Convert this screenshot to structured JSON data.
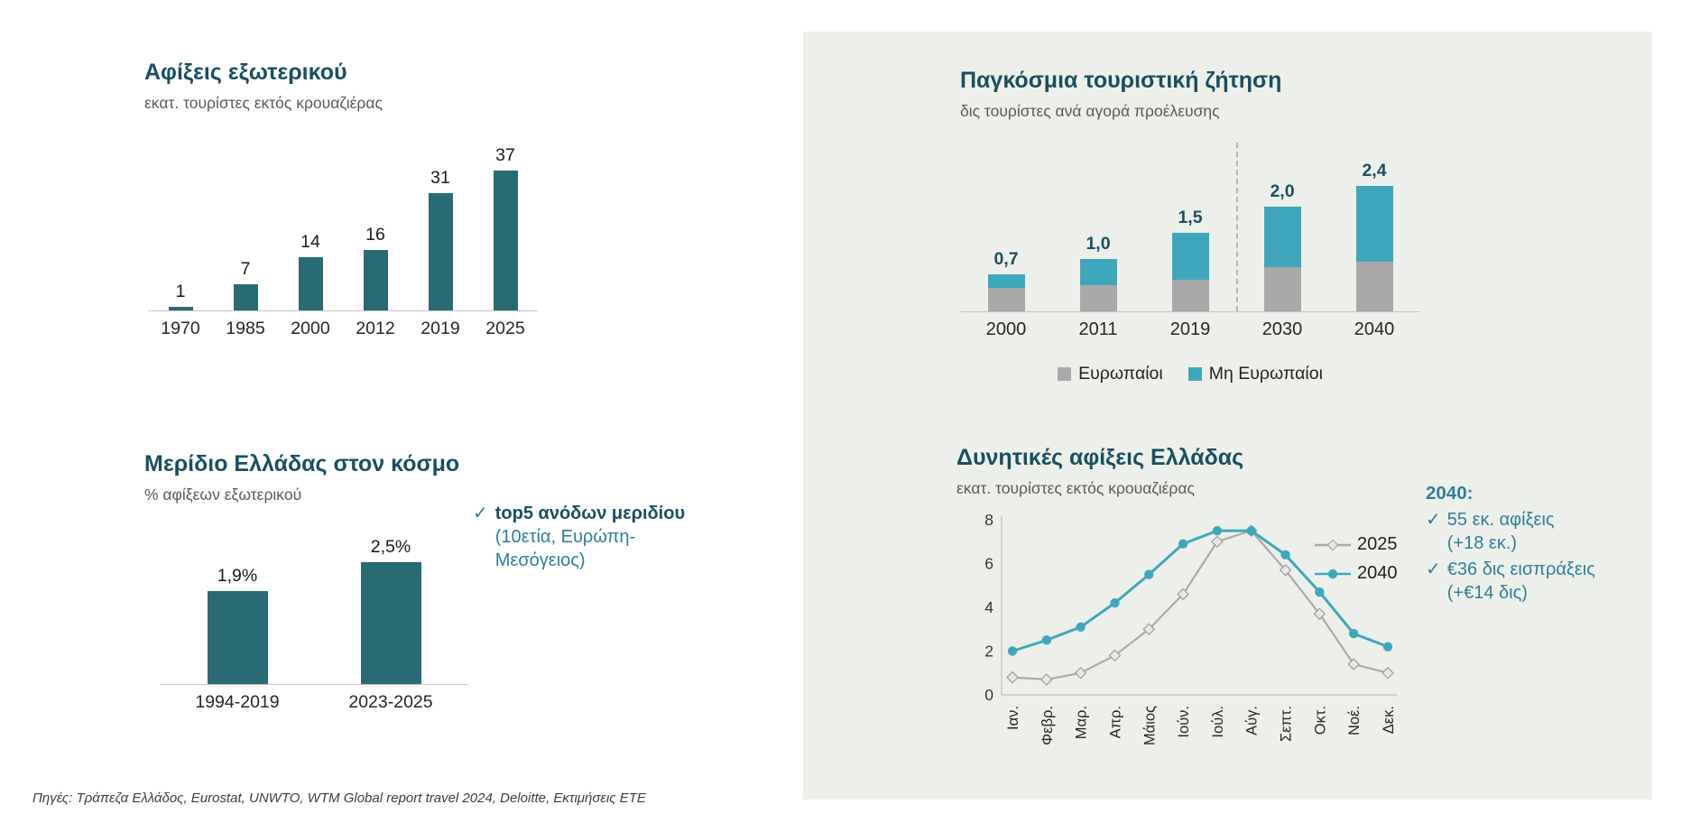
{
  "page": {
    "footer": "Πηγές: Τράπεζα Ελλάδος, Eurostat, UNWTO, WTM Global report travel 2024, Deloitte, Εκτιμήσεις ΕΤΕ"
  },
  "colors": {
    "title": "#1a4e60",
    "dark_teal": "#2a6a74",
    "cyan": "#3fa7bc",
    "gray": "#a9a9a9",
    "annotation": "#2e7e99",
    "axis": "#c4c4c4",
    "panel_bg": "#edf0ea"
  },
  "chart_data": [
    {
      "id": "arrivals_abroad",
      "type": "bar",
      "title": "Αφίξεις εξωτερικού",
      "subtitle": "εκατ. τουρίστες εκτός κρουαζιέρας",
      "categories": [
        "1970",
        "1985",
        "2000",
        "2012",
        "2019",
        "2025"
      ],
      "values": [
        1,
        7,
        14,
        16,
        31,
        37
      ],
      "value_labels": [
        "1",
        "7",
        "14",
        "16",
        "31",
        "37"
      ],
      "bar_color": "#2a6a74",
      "ylim": [
        0,
        40
      ],
      "grid": false,
      "legend_position": "none"
    },
    {
      "id": "global_tourism_demand",
      "type": "stacked_bar",
      "title": "Παγκόσμια τουριστική ζήτηση",
      "subtitle": "δις τουρίστες ανά αγορά προέλευσης",
      "categories": [
        "2000",
        "2011",
        "2019",
        "2030",
        "2040"
      ],
      "series": [
        {
          "name": "Ευρωπαίοι",
          "color": "#a9a9a9",
          "values": [
            0.45,
            0.5,
            0.6,
            0.85,
            0.95
          ]
        },
        {
          "name": "Μη Ευρωπαίοι",
          "color": "#3fa7bc",
          "values": [
            0.25,
            0.5,
            0.9,
            1.15,
            1.45
          ]
        }
      ],
      "totals": [
        0.7,
        1.0,
        1.5,
        2.0,
        2.4
      ],
      "total_labels": [
        "0,7",
        "1,0",
        "1,5",
        "2,0",
        "2,4"
      ],
      "forecast_divider_after": "2019",
      "legend_position": "bottom"
    },
    {
      "id": "greece_world_share",
      "type": "bar",
      "title": "Μερίδιο Ελλάδας στον κόσμο",
      "subtitle": "% αφίξεων εξωτερικού",
      "categories": [
        "1994-2019",
        "2023-2025"
      ],
      "values": [
        1.9,
        2.5
      ],
      "value_labels": [
        "1,9%",
        "2,5%"
      ],
      "bar_color": "#2a6a74",
      "ylim": [
        0,
        3
      ],
      "annotation": {
        "check": "✓",
        "bold": "top5 ανόδων μεριδίου",
        "rest": "(10ετία, Ευρώπη-Μεσόγειος)"
      }
    },
    {
      "id": "greece_potential_arrivals",
      "type": "line",
      "title": "Δυνητικές αφίξεις Ελλάδας",
      "subtitle": "εκατ. τουρίστες εκτός κρουαζιέρας",
      "x": [
        "Ιαν.",
        "Φεβρ.",
        "Μαρ.",
        "Απρ.",
        "Μάιος",
        "Ιούν.",
        "Ιούλ.",
        "Αύγ.",
        "Σεπτ.",
        "Οκτ.",
        "Νοέ.",
        "Δεκ."
      ],
      "series": [
        {
          "name": "2025",
          "color": "#a9a9a9",
          "marker": "diamond",
          "values": [
            0.8,
            0.7,
            1.0,
            1.8,
            3.0,
            4.6,
            7.0,
            7.5,
            5.7,
            3.7,
            1.4,
            1.0
          ]
        },
        {
          "name": "2040",
          "color": "#3fa7bc",
          "marker": "circle",
          "values": [
            2.0,
            2.5,
            3.1,
            4.2,
            5.5,
            6.9,
            7.5,
            7.5,
            6.4,
            4.7,
            2.8,
            2.2
          ]
        }
      ],
      "ylim": [
        0,
        8
      ],
      "yticks": [
        0,
        2,
        4,
        6,
        8
      ],
      "legend_position": "inside-top-right",
      "annotation": {
        "heading": "2040:",
        "items": [
          {
            "check": "✓",
            "lines": [
              "55 εκ. αφίξεις",
              "(+18 εκ.)"
            ]
          },
          {
            "check": "✓",
            "lines": [
              "€36 δις εισπράξεις",
              "(+€14 δις)"
            ]
          }
        ]
      }
    }
  ]
}
